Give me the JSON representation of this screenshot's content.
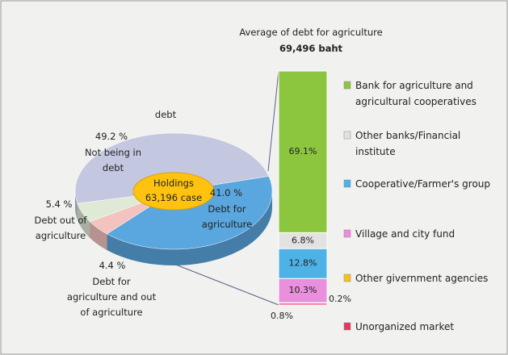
{
  "chart_data": [
    {
      "type": "pie",
      "title": "debt",
      "center_label": "Holdings 63,196 case",
      "categories": [
        "Not being in debt",
        "Debt for agriculture",
        "Debt out of agriculture",
        "Debt for agriculture and out of agriculture"
      ],
      "values": [
        49.2,
        41.0,
        5.4,
        4.4
      ],
      "value_labels": [
        "49.2 %",
        "41.0 %",
        "5.4 %",
        "4.4 %"
      ],
      "colors": [
        "#c3c7df",
        "#5aa6de",
        "#dfead6",
        "#f3c3c0"
      ]
    },
    {
      "type": "stacked_bar",
      "title": "Average of debt for agriculture",
      "subtitle": "69,496 baht",
      "categories": [
        "Bank for agriculture and agricultural cooperatives",
        "Other banks/Financial institute",
        "Cooperative/Farmer's group",
        "Village and city fund",
        "Other givernment agencies",
        "Unorganized market"
      ],
      "values": [
        69.1,
        6.8,
        12.8,
        10.3,
        0.2,
        0.8
      ],
      "value_labels": [
        "69.1%",
        "6.8%",
        "12.8%",
        "10.3%",
        "0.2%",
        "0.8%"
      ],
      "colors": [
        "#8cc63f",
        "#e2e2e2",
        "#4fb2e6",
        "#e98fdc",
        "#f4c21a",
        "#e8355a"
      ]
    }
  ]
}
